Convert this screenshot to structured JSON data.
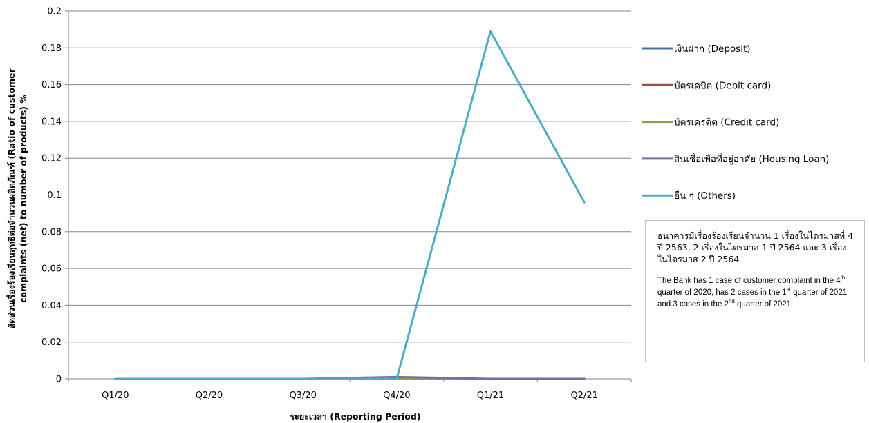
{
  "chart_data": {
    "type": "line",
    "categories": [
      "Q1/20",
      "Q2/20",
      "Q3/20",
      "Q4/20",
      "Q1/21",
      "Q2/21"
    ],
    "series": [
      {
        "name": "เงินฝาก (Deposit)",
        "color": "#4572A7",
        "values": [
          0,
          0,
          0,
          0,
          0,
          0
        ]
      },
      {
        "name": "บัตรเดบิต (Debit card)",
        "color": "#AA4643",
        "values": [
          0,
          0,
          0,
          0,
          0,
          0
        ]
      },
      {
        "name": "บัตรเครดิต (Credit card)",
        "color": "#89A54E",
        "values": [
          0,
          0,
          0,
          0,
          0,
          0
        ]
      },
      {
        "name": "สินเชื่อเพื่อที่อยู่อาศัย (Housing Loan)",
        "color": "#80699B",
        "values": [
          0,
          0,
          0,
          0.001,
          0,
          0
        ]
      },
      {
        "name": "อื่น ๆ (Others)",
        "color": "#4BACC6",
        "values": [
          0,
          0,
          0,
          0,
          0.189,
          0.096
        ]
      }
    ],
    "yticks": [
      "0",
      "0.02",
      "0.04",
      "0.06",
      "0.08",
      "0.1",
      "0.12",
      "0.14",
      "0.16",
      "0.18",
      "0.2"
    ],
    "ylim": [
      0,
      0.2
    ],
    "xlabel": "ระยะเวลา (Reporting Period)",
    "ylabel_line1": "สัดส่วนเรื่องร้องเรียนสุทธิต่อจำนวนผลิตภัณฑ์ (Ratio of customer",
    "ylabel_line2": "complaints (net) to number of products) %",
    "grid": true,
    "legend_position": "right"
  },
  "note": {
    "thai": "ธนาคารมีเรื่องร้องเรียนจำนวน 1 เรื่องในไตรมาสที่ 4 ปี 2563, 2 เรื่องในไตรมาส 1 ปี 2564 และ 3 เรื่องในไตรมาส 2 ปี 2564",
    "en_part1": "The Bank has 1 case of customer complaint in the 4",
    "en_sup1": "th",
    "en_part2": " quarter of 2020,   has 2 cases in the 1",
    "en_sup2": "st",
    "en_part3": " quarter of 2021 and 3 cases in the 2",
    "en_sup3": "nd",
    "en_part4": " quarter of 2021."
  }
}
